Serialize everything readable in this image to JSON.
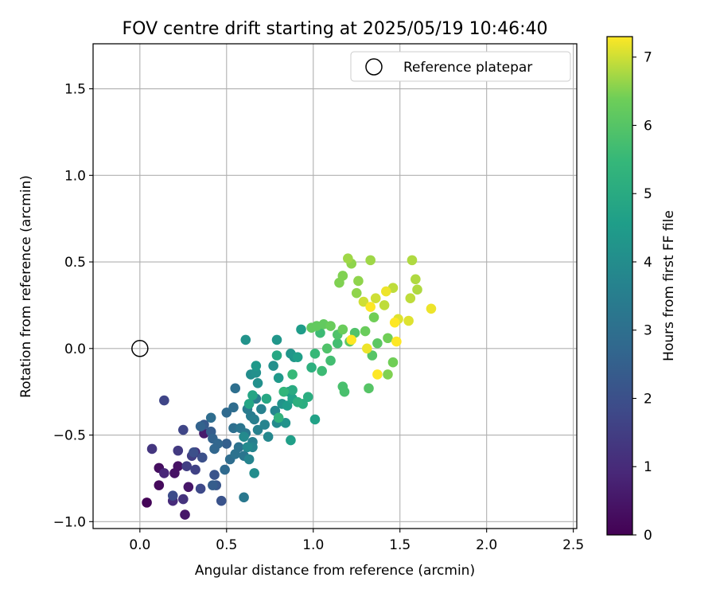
{
  "chart_data": {
    "type": "scatter",
    "title": "FOV centre drift starting at 2025/05/19 10:46:40",
    "xlabel": "Angular distance from reference (arcmin)",
    "ylabel": "Rotation from reference (arcmin)",
    "xlim": [
      -0.27,
      2.52
    ],
    "ylim": [
      -1.04,
      1.76
    ],
    "xticks": [
      0.0,
      0.5,
      1.0,
      1.5,
      2.0,
      2.5
    ],
    "xtick_labels": [
      "0.0",
      "0.5",
      "1.0",
      "1.5",
      "2.0",
      "2.5"
    ],
    "yticks": [
      -1.0,
      -0.5,
      0.0,
      0.5,
      1.0,
      1.5
    ],
    "ytick_labels": [
      "−1.0",
      "−0.5",
      "0.0",
      "0.5",
      "1.0",
      "1.5"
    ],
    "grid": true,
    "legend": {
      "placement": "top-right",
      "entries": [
        "Reference platepar"
      ]
    },
    "reference_point": {
      "label": "Reference platepar",
      "x": 0.0,
      "y": 0.0,
      "marker": "open-circle"
    },
    "colorbar": {
      "label": "Hours from first FF file",
      "range": [
        0,
        7.3
      ],
      "ticks": [
        0,
        1,
        2,
        3,
        4,
        5,
        6,
        7
      ],
      "tick_labels": [
        "0",
        "1",
        "2",
        "3",
        "4",
        "5",
        "6",
        "7"
      ],
      "colormap": "viridis"
    },
    "points": [
      {
        "x": 0.04,
        "y": -0.89,
        "h": 0.1
      },
      {
        "x": 0.11,
        "y": -0.79,
        "h": 0.2
      },
      {
        "x": 0.11,
        "y": -0.69,
        "h": 0.3
      },
      {
        "x": 0.2,
        "y": -0.72,
        "h": 0.4
      },
      {
        "x": 0.22,
        "y": -0.68,
        "h": 0.4
      },
      {
        "x": 0.28,
        "y": -0.8,
        "h": 0.5
      },
      {
        "x": 0.26,
        "y": -0.96,
        "h": 0.5
      },
      {
        "x": 0.37,
        "y": -0.49,
        "h": 0.6
      },
      {
        "x": 0.14,
        "y": -0.72,
        "h": 0.9
      },
      {
        "x": 0.19,
        "y": -0.88,
        "h": 1.0
      },
      {
        "x": 0.32,
        "y": -0.6,
        "h": 1.1
      },
      {
        "x": 0.25,
        "y": -0.87,
        "h": 1.2
      },
      {
        "x": 0.07,
        "y": -0.58,
        "h": 1.3
      },
      {
        "x": 0.22,
        "y": -0.59,
        "h": 1.4
      },
      {
        "x": 0.27,
        "y": -0.68,
        "h": 1.5
      },
      {
        "x": 0.3,
        "y": -0.62,
        "h": 1.5
      },
      {
        "x": 0.32,
        "y": -0.7,
        "h": 1.6
      },
      {
        "x": 0.14,
        "y": -0.3,
        "h": 1.7
      },
      {
        "x": 0.25,
        "y": -0.47,
        "h": 1.7
      },
      {
        "x": 0.35,
        "y": -0.81,
        "h": 1.8
      },
      {
        "x": 0.19,
        "y": -0.85,
        "h": 1.9
      },
      {
        "x": 0.31,
        "y": -0.6,
        "h": 2.0
      },
      {
        "x": 0.36,
        "y": -0.63,
        "h": 2.0
      },
      {
        "x": 0.43,
        "y": -0.73,
        "h": 2.1
      },
      {
        "x": 0.47,
        "y": -0.88,
        "h": 2.1
      },
      {
        "x": 0.44,
        "y": -0.79,
        "h": 2.2
      },
      {
        "x": 0.37,
        "y": -0.44,
        "h": 2.3
      },
      {
        "x": 0.41,
        "y": -0.48,
        "h": 2.4
      },
      {
        "x": 0.42,
        "y": -0.79,
        "h": 2.4
      },
      {
        "x": 0.5,
        "y": -0.55,
        "h": 2.5
      },
      {
        "x": 0.35,
        "y": -0.45,
        "h": 2.6
      },
      {
        "x": 0.42,
        "y": -0.52,
        "h": 2.6
      },
      {
        "x": 0.45,
        "y": -0.55,
        "h": 2.7
      },
      {
        "x": 0.43,
        "y": -0.58,
        "h": 2.7
      },
      {
        "x": 0.5,
        "y": -0.37,
        "h": 2.8
      },
      {
        "x": 0.49,
        "y": -0.7,
        "h": 2.8
      },
      {
        "x": 0.52,
        "y": -0.64,
        "h": 2.9
      },
      {
        "x": 0.54,
        "y": -0.34,
        "h": 2.9
      },
      {
        "x": 0.41,
        "y": -0.4,
        "h": 2.9
      },
      {
        "x": 0.54,
        "y": -0.46,
        "h": 3.0
      },
      {
        "x": 0.55,
        "y": -0.23,
        "h": 3.0
      },
      {
        "x": 0.57,
        "y": -0.57,
        "h": 3.1
      },
      {
        "x": 0.55,
        "y": -0.61,
        "h": 3.1
      },
      {
        "x": 0.58,
        "y": -0.46,
        "h": 3.2
      },
      {
        "x": 0.6,
        "y": -0.62,
        "h": 3.2
      },
      {
        "x": 0.6,
        "y": -0.86,
        "h": 3.3
      },
      {
        "x": 0.61,
        "y": -0.49,
        "h": 3.3
      },
      {
        "x": 0.62,
        "y": -0.35,
        "h": 3.4
      },
      {
        "x": 0.64,
        "y": -0.39,
        "h": 3.4
      },
      {
        "x": 0.65,
        "y": -0.54,
        "h": 3.5
      },
      {
        "x": 0.67,
        "y": -0.29,
        "h": 3.5
      },
      {
        "x": 0.66,
        "y": -0.41,
        "h": 3.5
      },
      {
        "x": 0.68,
        "y": -0.47,
        "h": 3.6
      },
      {
        "x": 0.7,
        "y": -0.35,
        "h": 3.6
      },
      {
        "x": 0.63,
        "y": -0.64,
        "h": 3.7
      },
      {
        "x": 0.65,
        "y": -0.57,
        "h": 3.7
      },
      {
        "x": 0.72,
        "y": -0.44,
        "h": 3.7
      },
      {
        "x": 0.74,
        "y": -0.51,
        "h": 3.8
      },
      {
        "x": 0.78,
        "y": -0.36,
        "h": 3.8
      },
      {
        "x": 0.79,
        "y": -0.43,
        "h": 3.9
      },
      {
        "x": 0.6,
        "y": -0.51,
        "h": 3.9
      },
      {
        "x": 0.62,
        "y": -0.57,
        "h": 3.9
      },
      {
        "x": 0.66,
        "y": -0.72,
        "h": 4.0
      },
      {
        "x": 0.64,
        "y": -0.15,
        "h": 4.0
      },
      {
        "x": 0.68,
        "y": -0.2,
        "h": 4.1
      },
      {
        "x": 0.77,
        "y": -0.1,
        "h": 4.1
      },
      {
        "x": 0.67,
        "y": -0.14,
        "h": 4.1
      },
      {
        "x": 0.82,
        "y": -0.32,
        "h": 4.2
      },
      {
        "x": 0.84,
        "y": -0.43,
        "h": 4.2
      },
      {
        "x": 0.61,
        "y": 0.05,
        "h": 4.2
      },
      {
        "x": 0.79,
        "y": 0.05,
        "h": 4.3
      },
      {
        "x": 0.87,
        "y": -0.03,
        "h": 4.3
      },
      {
        "x": 0.89,
        "y": -0.05,
        "h": 4.3
      },
      {
        "x": 0.67,
        "y": -0.1,
        "h": 4.4
      },
      {
        "x": 0.8,
        "y": -0.17,
        "h": 4.4
      },
      {
        "x": 0.86,
        "y": -0.25,
        "h": 4.5
      },
      {
        "x": 0.85,
        "y": -0.33,
        "h": 4.5
      },
      {
        "x": 0.93,
        "y": 0.11,
        "h": 4.5
      },
      {
        "x": 0.91,
        "y": -0.05,
        "h": 4.6
      },
      {
        "x": 0.87,
        "y": -0.53,
        "h": 4.6
      },
      {
        "x": 1.01,
        "y": -0.41,
        "h": 4.7
      },
      {
        "x": 0.88,
        "y": -0.29,
        "h": 4.7
      },
      {
        "x": 0.65,
        "y": -0.27,
        "h": 4.8
      },
      {
        "x": 0.63,
        "y": -0.32,
        "h": 4.8
      },
      {
        "x": 0.73,
        "y": -0.29,
        "h": 4.9
      },
      {
        "x": 0.79,
        "y": -0.04,
        "h": 4.9
      },
      {
        "x": 0.88,
        "y": -0.24,
        "h": 5.0
      },
      {
        "x": 0.94,
        "y": -0.32,
        "h": 5.1
      },
      {
        "x": 0.97,
        "y": -0.28,
        "h": 5.1
      },
      {
        "x": 0.91,
        "y": -0.31,
        "h": 5.2
      },
      {
        "x": 0.99,
        "y": -0.11,
        "h": 5.2
      },
      {
        "x": 0.8,
        "y": -0.4,
        "h": 5.3
      },
      {
        "x": 0.83,
        "y": -0.25,
        "h": 5.4
      },
      {
        "x": 0.88,
        "y": -0.15,
        "h": 5.5
      },
      {
        "x": 1.01,
        "y": -0.03,
        "h": 5.5
      },
      {
        "x": 1.05,
        "y": -0.13,
        "h": 5.6
      },
      {
        "x": 1.04,
        "y": 0.09,
        "h": 5.6
      },
      {
        "x": 1.1,
        "y": -0.07,
        "h": 5.7
      },
      {
        "x": 1.14,
        "y": 0.03,
        "h": 5.7
      },
      {
        "x": 1.17,
        "y": -0.22,
        "h": 5.8
      },
      {
        "x": 1.18,
        "y": -0.25,
        "h": 5.8
      },
      {
        "x": 1.08,
        "y": 0.0,
        "h": 5.9
      },
      {
        "x": 1.14,
        "y": 0.08,
        "h": 5.9
      },
      {
        "x": 1.24,
        "y": 0.09,
        "h": 5.9
      },
      {
        "x": 1.32,
        "y": -0.23,
        "h": 6.0
      },
      {
        "x": 1.34,
        "y": -0.04,
        "h": 6.0
      },
      {
        "x": 1.37,
        "y": 0.03,
        "h": 6.1
      },
      {
        "x": 1.21,
        "y": 0.04,
        "h": 6.1
      },
      {
        "x": 0.99,
        "y": 0.12,
        "h": 6.2
      },
      {
        "x": 1.02,
        "y": 0.13,
        "h": 6.2
      },
      {
        "x": 1.06,
        "y": 0.14,
        "h": 6.2
      },
      {
        "x": 1.1,
        "y": 0.13,
        "h": 6.3
      },
      {
        "x": 1.17,
        "y": 0.11,
        "h": 6.3
      },
      {
        "x": 1.3,
        "y": 0.1,
        "h": 6.3
      },
      {
        "x": 1.35,
        "y": 0.18,
        "h": 6.4
      },
      {
        "x": 1.43,
        "y": 0.06,
        "h": 6.4
      },
      {
        "x": 1.46,
        "y": -0.08,
        "h": 6.4
      },
      {
        "x": 1.43,
        "y": -0.15,
        "h": 6.5
      },
      {
        "x": 1.15,
        "y": 0.38,
        "h": 6.5
      },
      {
        "x": 1.17,
        "y": 0.42,
        "h": 6.5
      },
      {
        "x": 1.22,
        "y": 0.49,
        "h": 6.6
      },
      {
        "x": 1.25,
        "y": 0.32,
        "h": 6.6
      },
      {
        "x": 1.26,
        "y": 0.39,
        "h": 6.6
      },
      {
        "x": 1.2,
        "y": 0.52,
        "h": 6.7
      },
      {
        "x": 1.33,
        "y": 0.51,
        "h": 6.7
      },
      {
        "x": 1.57,
        "y": 0.51,
        "h": 6.8
      },
      {
        "x": 1.59,
        "y": 0.4,
        "h": 6.8
      },
      {
        "x": 1.6,
        "y": 0.34,
        "h": 6.8
      },
      {
        "x": 1.41,
        "y": 0.25,
        "h": 6.9
      },
      {
        "x": 1.46,
        "y": 0.35,
        "h": 6.9
      },
      {
        "x": 1.56,
        "y": 0.29,
        "h": 6.9
      },
      {
        "x": 1.29,
        "y": 0.27,
        "h": 7.0
      },
      {
        "x": 1.36,
        "y": 0.29,
        "h": 7.0
      },
      {
        "x": 1.49,
        "y": 0.17,
        "h": 7.1
      },
      {
        "x": 1.55,
        "y": 0.16,
        "h": 7.1
      },
      {
        "x": 1.68,
        "y": 0.23,
        "h": 7.2
      },
      {
        "x": 1.42,
        "y": 0.33,
        "h": 7.2
      },
      {
        "x": 1.31,
        "y": 0.0,
        "h": 7.2
      },
      {
        "x": 1.22,
        "y": 0.05,
        "h": 7.3
      },
      {
        "x": 1.48,
        "y": 0.04,
        "h": 7.3
      },
      {
        "x": 1.37,
        "y": -0.15,
        "h": 7.3
      },
      {
        "x": 1.33,
        "y": 0.24,
        "h": 7.3
      },
      {
        "x": 1.47,
        "y": 0.15,
        "h": 7.3
      }
    ]
  }
}
